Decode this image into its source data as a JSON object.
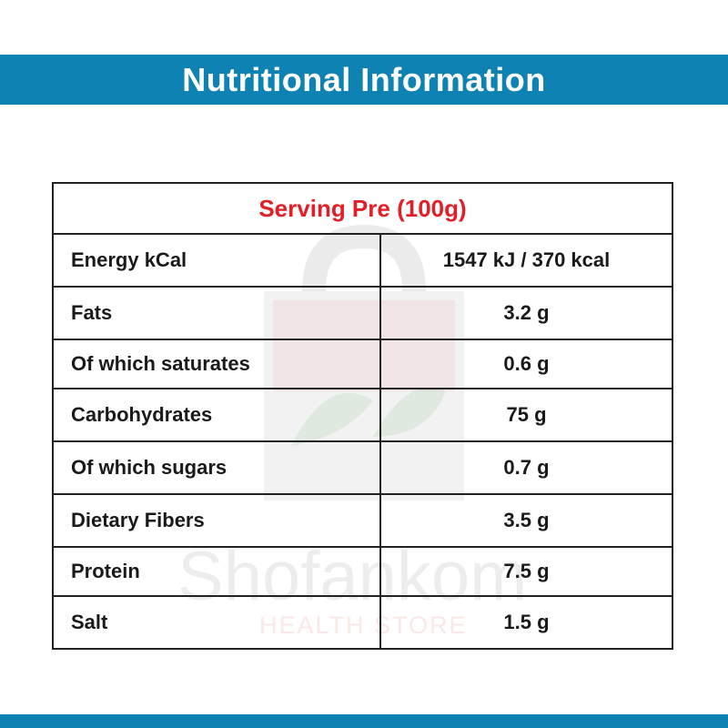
{
  "banner": {
    "title": "Nutritional Information"
  },
  "watermark": {
    "brand": "Shofankom",
    "tagline": "HEALTH STORE"
  },
  "table": {
    "header": "Serving Pre  (100g)",
    "rows": [
      {
        "label": "Energy kCal",
        "value": "1547 kJ / 370 kcal"
      },
      {
        "label": "Fats",
        "value": "3.2 g"
      },
      {
        "label": "Of which saturates",
        "value": "0.6 g"
      },
      {
        "label": "Carbohydrates",
        "value": "75 g"
      },
      {
        "label": "Of which sugars",
        "value": "0.7 g"
      },
      {
        "label": "Dietary Fibers",
        "value": "3.5 g"
      },
      {
        "label": "Protein",
        "value": "7.5 g"
      },
      {
        "label": "Salt",
        "value": "1.5 g"
      }
    ]
  },
  "colors": {
    "banner": "#0f82b4",
    "header_text": "#e41e26",
    "text": "#1a1a1a",
    "border": "#222222"
  }
}
